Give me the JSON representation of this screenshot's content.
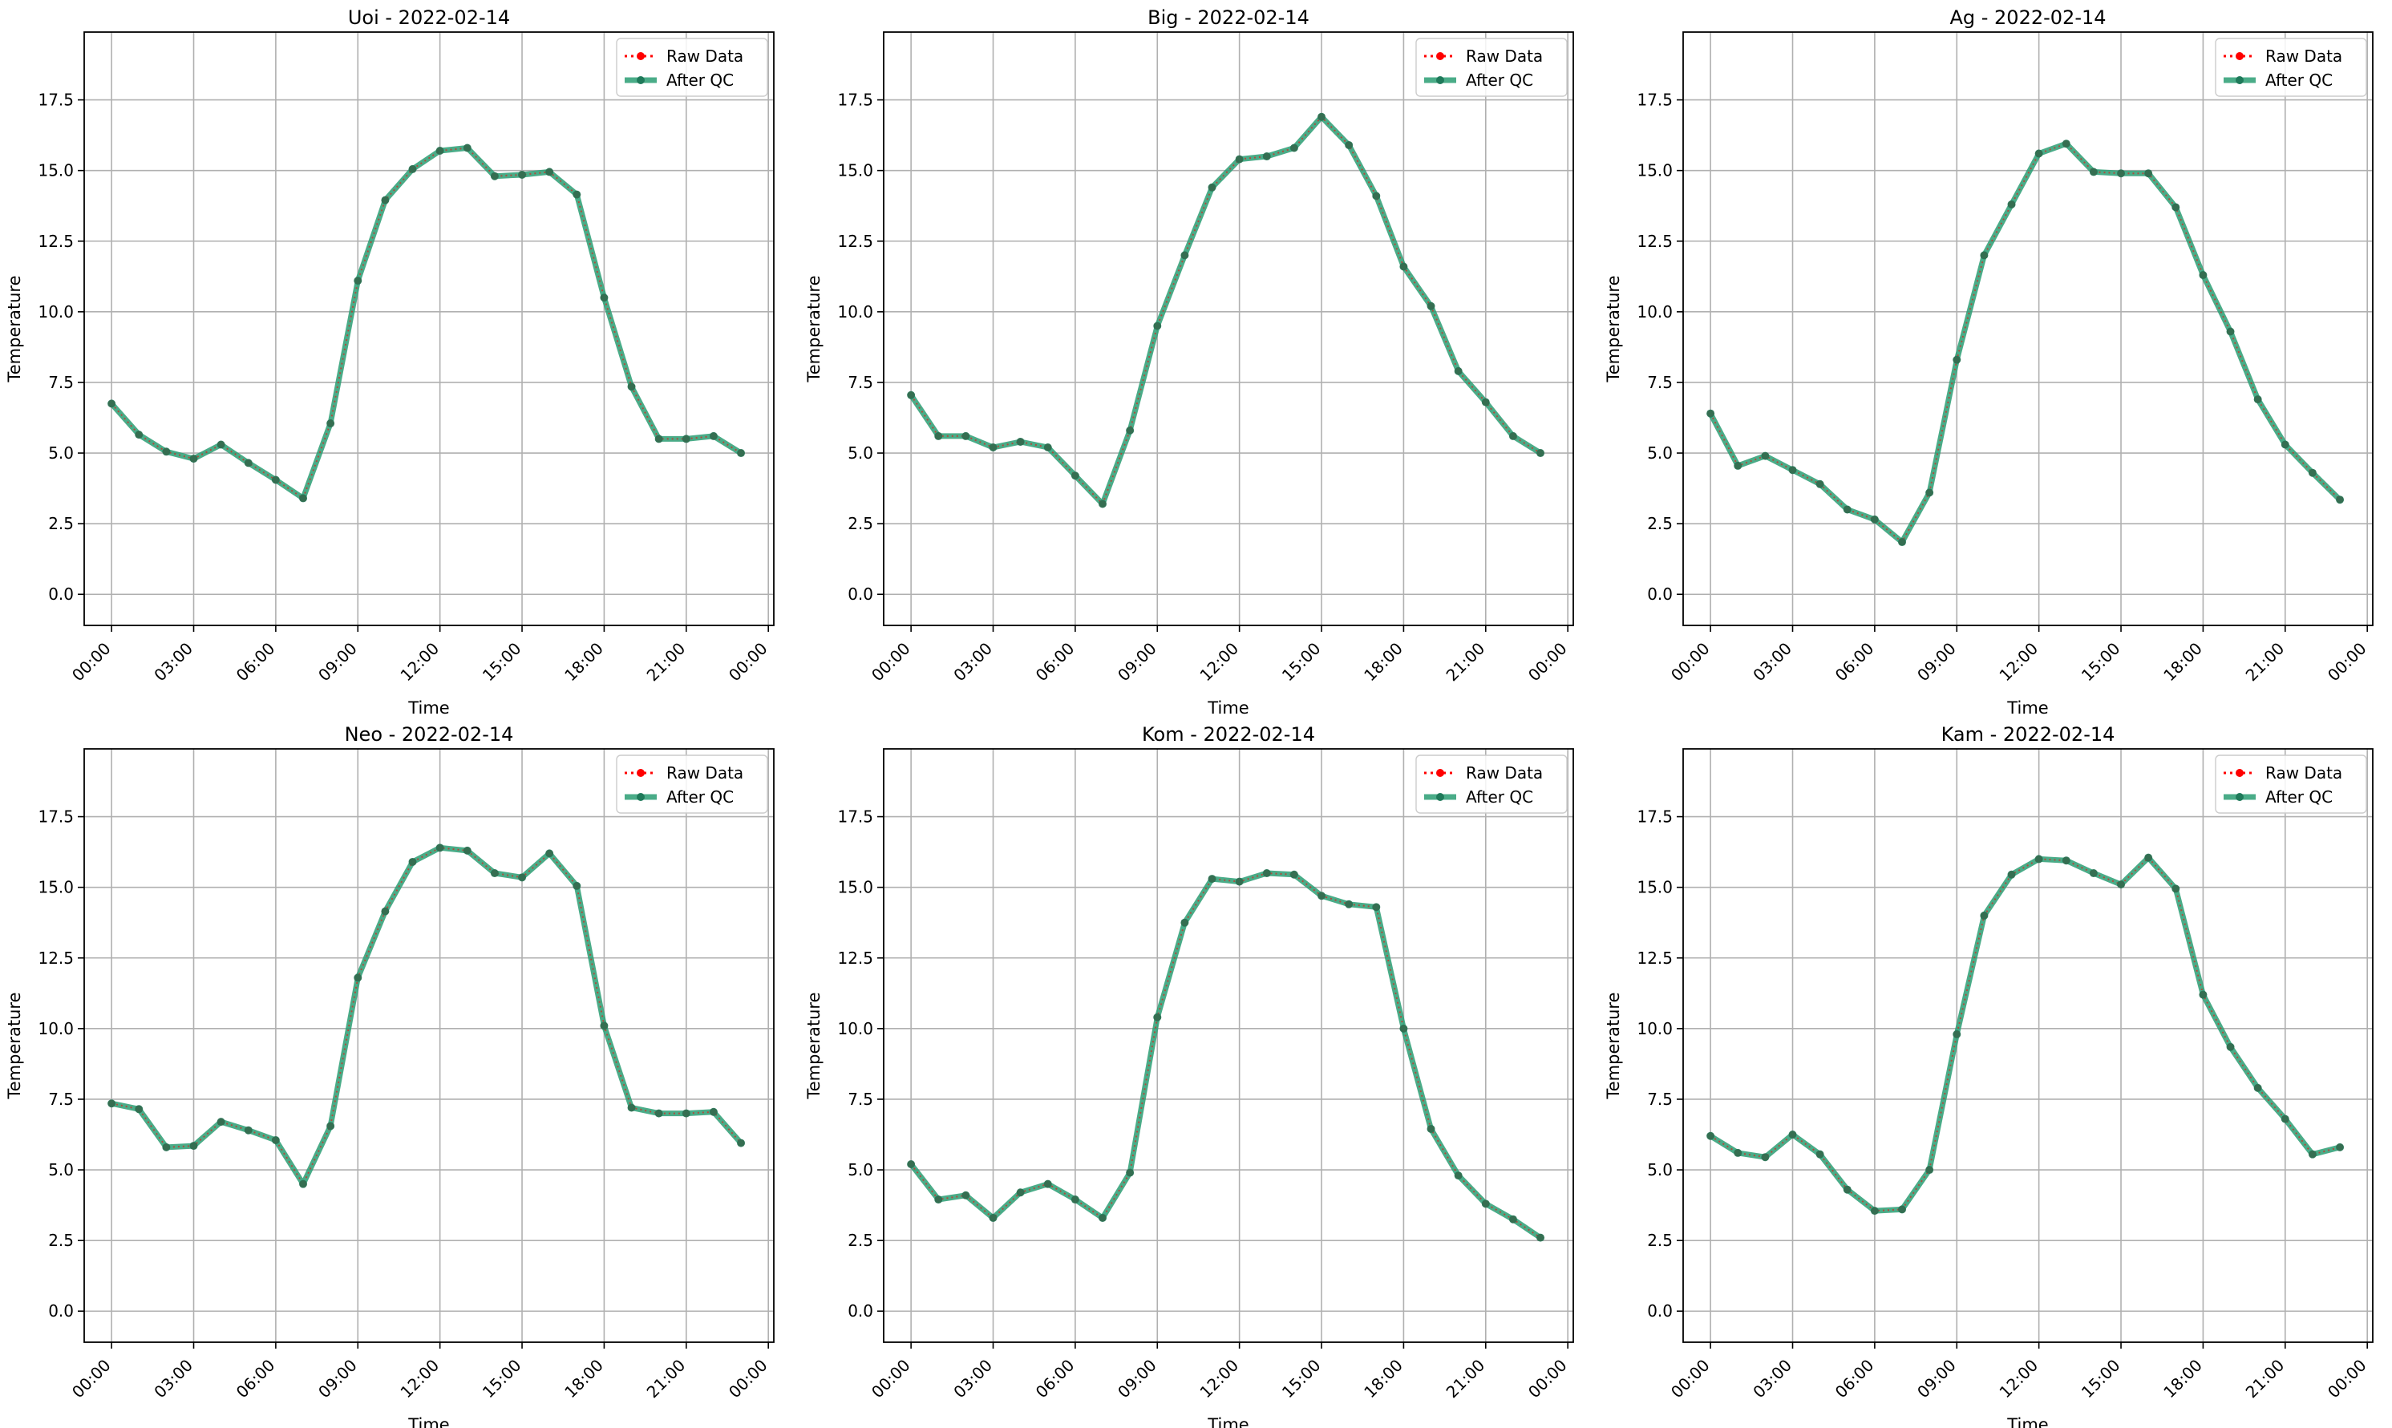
{
  "figure": {
    "legend_labels": {
      "raw": "Raw Data",
      "qc": "After QC"
    },
    "colors": {
      "raw": "#ff0000",
      "qc": "#2a9d73",
      "qc_dot": "#1f7a5a",
      "grid": "#b0b0b0",
      "axes": "#000000"
    }
  },
  "chart_data": [
    {
      "type": "line",
      "title": "Uoi - 2022-02-14",
      "xlabel": "Time",
      "ylabel": "Temperature",
      "x_ticks": [
        "00:00",
        "03:00",
        "06:00",
        "09:00",
        "12:00",
        "15:00",
        "18:00",
        "21:00",
        "00:00"
      ],
      "y_ticks": [
        "0.0",
        "2.5",
        "5.0",
        "7.5",
        "10.0",
        "12.5",
        "15.0",
        "17.5"
      ],
      "xlim": [
        -1,
        24.2
      ],
      "ylim": [
        -1.1,
        19.9
      ],
      "grid": true,
      "legend": "top-right",
      "x_hours": [
        0,
        1,
        2,
        3,
        4,
        5,
        6,
        7,
        8,
        9,
        10,
        11,
        12,
        13,
        14,
        15,
        16,
        17,
        18,
        19,
        20,
        21,
        22,
        23
      ],
      "series": [
        {
          "name": "Raw Data",
          "values": [
            6.75,
            5.65,
            5.05,
            4.8,
            5.3,
            4.65,
            4.05,
            3.4,
            6.05,
            11.1,
            13.95,
            15.05,
            15.7,
            15.8,
            14.8,
            14.85,
            14.95,
            14.15,
            10.5,
            7.35,
            5.5,
            5.5,
            5.6,
            5.0
          ]
        },
        {
          "name": "After QC",
          "values": [
            6.75,
            5.65,
            5.05,
            4.8,
            5.3,
            4.65,
            4.05,
            3.4,
            6.05,
            11.1,
            13.95,
            15.05,
            15.7,
            15.8,
            14.8,
            14.85,
            14.95,
            14.15,
            10.5,
            7.35,
            5.5,
            5.5,
            5.6,
            5.0
          ]
        }
      ]
    },
    {
      "type": "line",
      "title": "Big - 2022-02-14",
      "xlabel": "Time",
      "ylabel": "Temperature",
      "x_ticks": [
        "00:00",
        "03:00",
        "06:00",
        "09:00",
        "12:00",
        "15:00",
        "18:00",
        "21:00",
        "00:00"
      ],
      "y_ticks": [
        "0.0",
        "2.5",
        "5.0",
        "7.5",
        "10.0",
        "12.5",
        "15.0",
        "17.5"
      ],
      "xlim": [
        -1,
        24.2
      ],
      "ylim": [
        -1.1,
        19.9
      ],
      "grid": true,
      "legend": "top-right",
      "x_hours": [
        0,
        1,
        2,
        3,
        4,
        5,
        6,
        7,
        8,
        9,
        10,
        11,
        12,
        13,
        14,
        15,
        16,
        17,
        18,
        19,
        20,
        21,
        22,
        23
      ],
      "series": [
        {
          "name": "Raw Data",
          "values": [
            7.05,
            5.6,
            5.6,
            5.2,
            5.4,
            5.2,
            4.2,
            3.2,
            5.8,
            9.5,
            12.0,
            14.4,
            15.4,
            15.5,
            15.8,
            16.9,
            15.9,
            14.1,
            11.6,
            10.2,
            7.9,
            6.8,
            5.6,
            5.0
          ]
        },
        {
          "name": "After QC",
          "values": [
            7.05,
            5.6,
            5.6,
            5.2,
            5.4,
            5.2,
            4.2,
            3.2,
            5.8,
            9.5,
            12.0,
            14.4,
            15.4,
            15.5,
            15.8,
            16.9,
            15.9,
            14.1,
            11.6,
            10.2,
            7.9,
            6.8,
            5.6,
            5.0
          ]
        }
      ]
    },
    {
      "type": "line",
      "title": "Ag - 2022-02-14",
      "xlabel": "Time",
      "ylabel": "Temperature",
      "x_ticks": [
        "00:00",
        "03:00",
        "06:00",
        "09:00",
        "12:00",
        "15:00",
        "18:00",
        "21:00",
        "00:00"
      ],
      "y_ticks": [
        "0.0",
        "2.5",
        "5.0",
        "7.5",
        "10.0",
        "12.5",
        "15.0",
        "17.5"
      ],
      "xlim": [
        -1,
        24.2
      ],
      "ylim": [
        -1.1,
        19.9
      ],
      "grid": true,
      "legend": "top-right",
      "x_hours": [
        0,
        1,
        2,
        3,
        4,
        5,
        6,
        7,
        8,
        9,
        10,
        11,
        12,
        13,
        14,
        15,
        16,
        17,
        18,
        19,
        20,
        21,
        22,
        23
      ],
      "series": [
        {
          "name": "Raw Data",
          "values": [
            6.4,
            4.55,
            4.9,
            4.4,
            3.9,
            3.0,
            2.65,
            1.85,
            3.6,
            8.3,
            12.0,
            13.8,
            15.6,
            15.95,
            14.95,
            14.9,
            14.9,
            13.7,
            11.3,
            9.3,
            6.9,
            5.3,
            4.3,
            3.35
          ]
        },
        {
          "name": "After QC",
          "values": [
            6.4,
            4.55,
            4.9,
            4.4,
            3.9,
            3.0,
            2.65,
            1.85,
            3.6,
            8.3,
            12.0,
            13.8,
            15.6,
            15.95,
            14.95,
            14.9,
            14.9,
            13.7,
            11.3,
            9.3,
            6.9,
            5.3,
            4.3,
            3.35
          ]
        }
      ]
    },
    {
      "type": "line",
      "title": "Neo - 2022-02-14",
      "xlabel": "Time",
      "ylabel": "Temperature",
      "x_ticks": [
        "00:00",
        "03:00",
        "06:00",
        "09:00",
        "12:00",
        "15:00",
        "18:00",
        "21:00",
        "00:00"
      ],
      "y_ticks": [
        "0.0",
        "2.5",
        "5.0",
        "7.5",
        "10.0",
        "12.5",
        "15.0",
        "17.5"
      ],
      "xlim": [
        -1,
        24.2
      ],
      "ylim": [
        -1.1,
        19.9
      ],
      "grid": true,
      "legend": "top-right",
      "x_hours": [
        0,
        1,
        2,
        3,
        4,
        5,
        6,
        7,
        8,
        9,
        10,
        11,
        12,
        13,
        14,
        15,
        16,
        17,
        18,
        19,
        20,
        21,
        22,
        23
      ],
      "series": [
        {
          "name": "Raw Data",
          "values": [
            7.35,
            7.15,
            5.8,
            5.85,
            6.7,
            6.4,
            6.05,
            4.5,
            6.55,
            11.8,
            14.15,
            15.9,
            16.4,
            16.3,
            15.5,
            15.35,
            16.2,
            15.05,
            10.1,
            7.2,
            7.0,
            7.0,
            7.05,
            5.95
          ]
        },
        {
          "name": "After QC",
          "values": [
            7.35,
            7.15,
            5.8,
            5.85,
            6.7,
            6.4,
            6.05,
            4.5,
            6.55,
            11.8,
            14.15,
            15.9,
            16.4,
            16.3,
            15.5,
            15.35,
            16.2,
            15.05,
            10.1,
            7.2,
            7.0,
            7.0,
            7.05,
            5.95
          ]
        }
      ]
    },
    {
      "type": "line",
      "title": "Kom - 2022-02-14",
      "xlabel": "Time",
      "ylabel": "Temperature",
      "x_ticks": [
        "00:00",
        "03:00",
        "06:00",
        "09:00",
        "12:00",
        "15:00",
        "18:00",
        "21:00",
        "00:00"
      ],
      "y_ticks": [
        "0.0",
        "2.5",
        "5.0",
        "7.5",
        "10.0",
        "12.5",
        "15.0",
        "17.5"
      ],
      "xlim": [
        -1,
        24.2
      ],
      "ylim": [
        -1.1,
        19.9
      ],
      "grid": true,
      "legend": "top-right",
      "x_hours": [
        0,
        1,
        2,
        3,
        4,
        5,
        6,
        7,
        8,
        9,
        10,
        11,
        12,
        13,
        14,
        15,
        16,
        17,
        18,
        19,
        20,
        21,
        22,
        23
      ],
      "series": [
        {
          "name": "Raw Data",
          "values": [
            5.2,
            3.95,
            4.1,
            3.3,
            4.2,
            4.5,
            3.95,
            3.3,
            4.9,
            10.4,
            13.75,
            15.3,
            15.2,
            15.5,
            15.45,
            14.7,
            14.4,
            14.3,
            10.0,
            6.45,
            4.8,
            3.8,
            3.25,
            2.6
          ]
        },
        {
          "name": "After QC",
          "values": [
            5.2,
            3.95,
            4.1,
            3.3,
            4.2,
            4.5,
            3.95,
            3.3,
            4.9,
            10.4,
            13.75,
            15.3,
            15.2,
            15.5,
            15.45,
            14.7,
            14.4,
            14.3,
            10.0,
            6.45,
            4.8,
            3.8,
            3.25,
            2.6
          ]
        }
      ]
    },
    {
      "type": "line",
      "title": "Kam - 2022-02-14",
      "xlabel": "Time",
      "ylabel": "Temperature",
      "x_ticks": [
        "00:00",
        "03:00",
        "06:00",
        "09:00",
        "12:00",
        "15:00",
        "18:00",
        "21:00",
        "00:00"
      ],
      "y_ticks": [
        "0.0",
        "2.5",
        "5.0",
        "7.5",
        "10.0",
        "12.5",
        "15.0",
        "17.5"
      ],
      "xlim": [
        -1,
        24.2
      ],
      "ylim": [
        -1.1,
        19.9
      ],
      "grid": true,
      "legend": "top-right",
      "x_hours": [
        0,
        1,
        2,
        3,
        4,
        5,
        6,
        7,
        8,
        9,
        10,
        11,
        12,
        13,
        14,
        15,
        16,
        17,
        18,
        19,
        20,
        21,
        22,
        23
      ],
      "series": [
        {
          "name": "Raw Data",
          "values": [
            6.2,
            5.6,
            5.45,
            6.25,
            5.55,
            4.3,
            3.55,
            3.6,
            5.0,
            9.8,
            14.0,
            15.45,
            16.0,
            15.95,
            15.5,
            15.1,
            16.05,
            14.95,
            11.2,
            9.35,
            7.9,
            6.8,
            5.55,
            5.8
          ]
        },
        {
          "name": "After QC",
          "values": [
            6.2,
            5.6,
            5.45,
            6.25,
            5.55,
            4.3,
            3.55,
            3.6,
            5.0,
            9.8,
            14.0,
            15.45,
            16.0,
            15.95,
            15.5,
            15.1,
            16.05,
            14.95,
            11.2,
            9.35,
            7.9,
            6.8,
            5.55,
            5.8
          ]
        }
      ]
    }
  ]
}
